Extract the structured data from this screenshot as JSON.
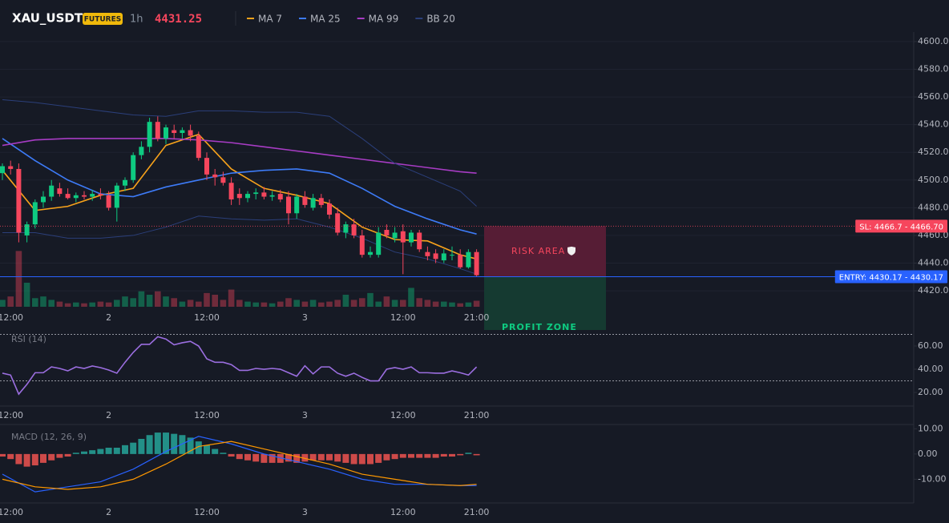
{
  "header": {
    "symbol": "XAU_USDT",
    "badge": "FUTURES",
    "interval": "1h",
    "price": 4431.25
  },
  "chart_data": [
    {
      "type": "candlestick",
      "categories": [
        null,
        "12:00",
        null,
        null,
        null,
        null,
        null,
        null,
        null,
        null,
        null,
        null,
        null,
        "2",
        null,
        null,
        null,
        null,
        null,
        null,
        null,
        null,
        null,
        null,
        null,
        "12:00",
        null,
        null,
        null,
        null,
        null,
        null,
        null,
        null,
        null,
        null,
        null,
        "3",
        null,
        null,
        null,
        null,
        null,
        null,
        null,
        null,
        null,
        null,
        null,
        "12:00",
        null,
        null,
        null,
        null,
        null,
        null,
        null,
        null,
        "21:00"
      ],
      "open": [
        4505,
        4510,
        4508,
        4460,
        4468,
        4484,
        4488,
        4494,
        4490,
        4487,
        4489,
        4488,
        4490,
        4489,
        4480,
        4496,
        4500,
        4518,
        4524,
        4542,
        4530,
        4536,
        4534,
        4536,
        4532,
        4516,
        4504,
        4502,
        4498,
        4490,
        4487,
        4490,
        4491,
        4488,
        4490,
        4488,
        4476,
        4488,
        4480,
        4487,
        4483,
        4476,
        4462,
        4468,
        4460,
        4446,
        4446,
        4464,
        4458,
        4463,
        4455,
        4462,
        4448,
        4447,
        4442,
        4446,
        4446,
        4437,
        4448
      ],
      "high": [
        4512,
        4514,
        4512,
        4470,
        4486,
        4492,
        4500,
        4498,
        4494,
        4491,
        4492,
        4493,
        4494,
        4492,
        4498,
        4502,
        4520,
        4528,
        4545,
        4546,
        4540,
        4540,
        4538,
        4540,
        4535,
        4520,
        4508,
        4506,
        4502,
        4494,
        4492,
        4494,
        4495,
        4492,
        4493,
        4492,
        4490,
        4492,
        4490,
        4490,
        4486,
        4480,
        4470,
        4472,
        4464,
        4452,
        4466,
        4468,
        4466,
        4468,
        4464,
        4464,
        4452,
        4450,
        4450,
        4452,
        4450,
        4450,
        4450
      ],
      "low": [
        4500,
        4504,
        4455,
        4455,
        4465,
        4480,
        4485,
        4488,
        4486,
        4484,
        4486,
        4485,
        4486,
        4478,
        4470,
        4492,
        4498,
        4515,
        4520,
        4528,
        4526,
        4530,
        4530,
        4528,
        4514,
        4500,
        4496,
        4496,
        4482,
        4482,
        4484,
        4486,
        4486,
        4485,
        4484,
        4468,
        4472,
        4480,
        4478,
        4480,
        4472,
        4460,
        4458,
        4458,
        4444,
        4444,
        4444,
        4458,
        4455,
        4432,
        4452,
        4448,
        4442,
        4440,
        4440,
        4442,
        4436,
        4436,
        4430
      ],
      "close": [
        4510,
        4508,
        4462,
        4468,
        4484,
        4488,
        4496,
        4490,
        4487,
        4489,
        4488,
        4490,
        4489,
        4480,
        4496,
        4500,
        4518,
        4524,
        4542,
        4530,
        4538,
        4534,
        4536,
        4532,
        4516,
        4504,
        4502,
        4498,
        4486,
        4487,
        4490,
        4491,
        4488,
        4489,
        4486,
        4476,
        4488,
        4482,
        4487,
        4482,
        4475,
        4462,
        4468,
        4460,
        4446,
        4448,
        4462,
        4460,
        4462,
        4455,
        4462,
        4450,
        4445,
        4443,
        4447,
        4446,
        4437,
        4448,
        4431.25
      ],
      "up_color": "#0ecb81",
      "down_color": "#f6465d",
      "volume": [
        8,
        12,
        65,
        28,
        10,
        12,
        8,
        6,
        4,
        5,
        4,
        5,
        6,
        5,
        8,
        12,
        10,
        18,
        14,
        18,
        12,
        10,
        6,
        8,
        6,
        16,
        14,
        8,
        20,
        8,
        6,
        5,
        5,
        4,
        6,
        10,
        8,
        6,
        8,
        5,
        6,
        8,
        14,
        8,
        10,
        16,
        6,
        12,
        8,
        8,
        22,
        10,
        8,
        6,
        6,
        5,
        4,
        5,
        7
      ],
      "vlim": [
        0,
        70
      ],
      "lines": [
        {
          "name": "MA 7",
          "color": "#f7a21b",
          "x": [
            0,
            4,
            8,
            12,
            16,
            20,
            24,
            28,
            32,
            36,
            40,
            44,
            48,
            52,
            56,
            58
          ],
          "values": [
            4507,
            4478,
            4481,
            4489,
            4494,
            4525,
            4533,
            4508,
            4494,
            4489,
            4483,
            4466,
            4457,
            4456,
            4446,
            4443
          ]
        },
        {
          "name": "MA 25",
          "color": "#3d7bf7",
          "x": [
            0,
            4,
            8,
            12,
            16,
            20,
            24,
            28,
            32,
            36,
            40,
            44,
            48,
            52,
            56,
            58
          ],
          "values": [
            4530,
            4514,
            4500,
            4490,
            4488,
            4495,
            4500,
            4505,
            4507,
            4508,
            4505,
            4494,
            4481,
            4472,
            4464,
            4461
          ]
        },
        {
          "name": "MA 99",
          "color": "#a73cc4",
          "x": [
            0,
            4,
            8,
            12,
            16,
            20,
            24,
            28,
            32,
            36,
            40,
            44,
            48,
            52,
            56,
            58
          ],
          "values": [
            4525,
            4529,
            4530,
            4530,
            4530,
            4530,
            4529,
            4527,
            4524,
            4521,
            4518,
            4515,
            4512,
            4509,
            4506,
            4505
          ]
        },
        {
          "name": "BB 20",
          "color": "#2b3f7a",
          "x": [
            0,
            4,
            8,
            12,
            16,
            20,
            24,
            28,
            32,
            36,
            40,
            44,
            48,
            52,
            56,
            58
          ],
          "values": [
            4558,
            4556,
            4553,
            4550,
            4547,
            4546,
            4550,
            4550,
            4549,
            4549,
            4546,
            4530,
            4512,
            4502,
            4492,
            4481
          ]
        },
        {
          "color": "#2b3f7a",
          "x": [
            0,
            4,
            8,
            12,
            16,
            20,
            24,
            28,
            32,
            36,
            40,
            44,
            48,
            52,
            56,
            58
          ],
          "values": [
            4462,
            4462,
            4458,
            4458,
            4460,
            4466,
            4474,
            4472,
            4471,
            4472,
            4466,
            4458,
            4448,
            4443,
            4436,
            4432
          ]
        }
      ],
      "ylim": [
        4391.7,
        4606.9
      ],
      "yticks": [
        {
          "value": 4420,
          "label": "4420.00"
        },
        {
          "value": 4440,
          "label": "4440.00"
        },
        {
          "value": 4460,
          "label": "4460.00"
        },
        {
          "value": 4480,
          "label": "4480.00"
        },
        {
          "value": 4500,
          "label": "4500.00"
        },
        {
          "value": 4520,
          "label": "4520.00"
        },
        {
          "value": 4540,
          "label": "4540.00"
        },
        {
          "value": 4560,
          "label": "4560.00"
        },
        {
          "value": 4580,
          "label": "4580.00"
        },
        {
          "value": 4600,
          "label": "4600.00"
        }
      ],
      "grid": true,
      "trade": {
        "sl": 4466.7,
        "sl_label": "SL: 4466.7 - 4466.70",
        "entry": 4430.17,
        "entry_label": "ENTRY: 4430.17 - 4430.17",
        "risk_label": "RISK AREA",
        "profit_label": "PROFIT ZONE"
      }
    },
    {
      "type": "line",
      "title": "RSI (14)",
      "color": "#9b6ee0",
      "values": [
        36.6,
        35,
        18.6,
        27,
        37,
        37,
        42,
        40.7,
        38.6,
        42,
        40.7,
        42.8,
        41.4,
        39.3,
        36.6,
        46,
        54.5,
        61.4,
        61.4,
        68,
        66,
        61,
        62.8,
        64,
        60,
        49,
        46,
        46,
        44,
        39,
        39,
        40.7,
        40,
        40.7,
        40,
        37,
        34,
        43,
        36,
        42,
        42,
        36.6,
        34,
        36.6,
        33,
        30,
        30,
        40,
        41.4,
        40,
        42,
        37,
        37,
        36.6,
        36.6,
        38.6,
        37,
        35,
        42
      ],
      "ylim": [
        8.3,
        73.8
      ],
      "yticks": [
        {
          "value": 20,
          "label": "20.00"
        },
        {
          "value": 40,
          "label": "40.00"
        },
        {
          "value": 60,
          "label": "60.00"
        }
      ],
      "bands": [
        30,
        70
      ]
    },
    {
      "type": "macd",
      "title": "MACD (12, 26, 9)",
      "histogram": [
        -1,
        -2,
        -4,
        -5,
        -4.5,
        -3.5,
        -2.5,
        -1.5,
        -1,
        0.5,
        1,
        1.5,
        2,
        2.5,
        2.5,
        3.5,
        4.5,
        6,
        7.5,
        8.5,
        8.5,
        8,
        7.5,
        6.5,
        5,
        3.5,
        2,
        0.5,
        -1,
        -2,
        -2.5,
        -3,
        -3.5,
        -3.5,
        -3.5,
        -3,
        -3.5,
        -3,
        -2.5,
        -2.5,
        -2.5,
        -3,
        -3.5,
        -4,
        -4,
        -4,
        -3.5,
        -2.5,
        -2,
        -1.5,
        -1.5,
        -1.5,
        -1.5,
        -1.5,
        -1,
        -1,
        -0.5,
        0.5,
        -0.5
      ],
      "up_color": "#26a69a",
      "down_color": "#ef5350",
      "series": [
        {
          "color": "#2962ff",
          "x": [
            0,
            4,
            8,
            12,
            16,
            20,
            24,
            28,
            32,
            36,
            40,
            44,
            48,
            52,
            56,
            58
          ],
          "values": [
            -8,
            -15,
            -13,
            -11,
            -6,
            1,
            7,
            4,
            0,
            -3,
            -6,
            -10,
            -12,
            -12,
            -12.5,
            -12.5
          ]
        },
        {
          "color": "#ff9800",
          "x": [
            0,
            4,
            8,
            12,
            16,
            20,
            24,
            28,
            32,
            36,
            40,
            44,
            48,
            52,
            56,
            58
          ],
          "values": [
            -10,
            -13,
            -14,
            -13,
            -10,
            -4,
            3,
            5,
            2,
            -1,
            -4,
            -8,
            -10,
            -12,
            -12.5,
            -12
          ]
        }
      ],
      "ylim": [
        -19.4,
        11.7
      ],
      "yticks": [
        {
          "value": -10,
          "label": "-10.00"
        },
        {
          "value": 0,
          "label": "0.00"
        },
        {
          "value": 10,
          "label": "10.00"
        }
      ]
    }
  ]
}
